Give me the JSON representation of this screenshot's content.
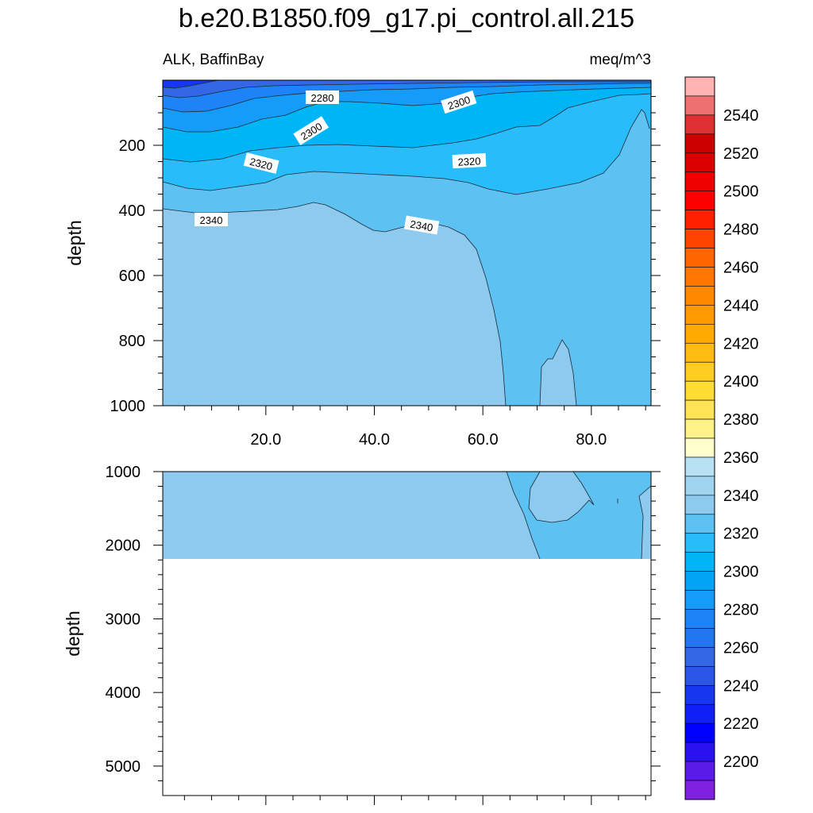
{
  "title": "b.e20.B1850.f09_g17.pi_control.all.215",
  "left_subtitle": "ALK, BaffinBay",
  "right_subtitle": "meq/m^3",
  "chart_data": [
    {
      "type": "contour",
      "panel": "upper",
      "ylabel": "depth",
      "ylim": [
        0,
        1000
      ],
      "yticks": [
        "200",
        "400",
        "600",
        "800",
        "1000"
      ],
      "xlim": [
        1,
        91
      ],
      "xticks": [
        "20.0",
        "40.0",
        "60.0",
        "80.0"
      ],
      "contour_labels": [
        "2280",
        "2300",
        "2300",
        "2320",
        "2320",
        "2340",
        "2340"
      ],
      "regions": [
        {
          "level": 2350,
          "color": "#8ecaee",
          "note": "deep water west of ~63"
        },
        {
          "level": 2340,
          "color": "#5dc1f2",
          "note": "deep water east of ~63, mid depths"
        },
        {
          "level": 2330,
          "color": "#29bcfa",
          "note": "upper ~300 m"
        },
        {
          "level": 2320,
          "color": "#00b5f6"
        },
        {
          "level": 2300,
          "color": "#149cf8"
        },
        {
          "level": 2280,
          "color": "#1d83f6"
        },
        {
          "level": 2260,
          "color": "#3367e6"
        },
        {
          "level": 2240,
          "color": "#1736f0"
        }
      ]
    },
    {
      "type": "contour",
      "panel": "lower",
      "ylabel": "depth",
      "ylim": [
        1000,
        5400
      ],
      "yticks": [
        "1000",
        "2000",
        "3000",
        "4000",
        "5000"
      ],
      "xlim": [
        1,
        91
      ],
      "data_bottom_depth": 2180,
      "regions": [
        {
          "level": 2350,
          "color": "#8ecaee"
        },
        {
          "level": 2340,
          "color": "#5dc1f2"
        }
      ]
    }
  ],
  "colorbar": {
    "labels": [
      "2540",
      "2520",
      "2500",
      "2480",
      "2460",
      "2440",
      "2420",
      "2400",
      "2380",
      "2360",
      "2340",
      "2320",
      "2300",
      "2280",
      "2260",
      "2240",
      "2220",
      "2200"
    ],
    "colors": [
      "#ffb3b3",
      "#ef7070",
      "#de3030",
      "#cc0000",
      "#dd0000",
      "#ee0000",
      "#ff0000",
      "#ff2000",
      "#ff4400",
      "#ff6600",
      "#ff7700",
      "#ff8800",
      "#ff9900",
      "#ffaa00",
      "#ffbb11",
      "#ffcc22",
      "#ffdd33",
      "#ffe555",
      "#fff288",
      "#ffffcc",
      "#b8e2f4",
      "#9fd3ef",
      "#8ecaee",
      "#5dc1f2",
      "#29bcfa",
      "#00b5f6",
      "#00a5f4",
      "#149cf8",
      "#1d83f6",
      "#2277f0",
      "#3367e6",
      "#2a55e8",
      "#1736f0",
      "#1020f5",
      "#0000ff",
      "#2a12ee",
      "#5a1ae8",
      "#8020e0"
    ]
  }
}
